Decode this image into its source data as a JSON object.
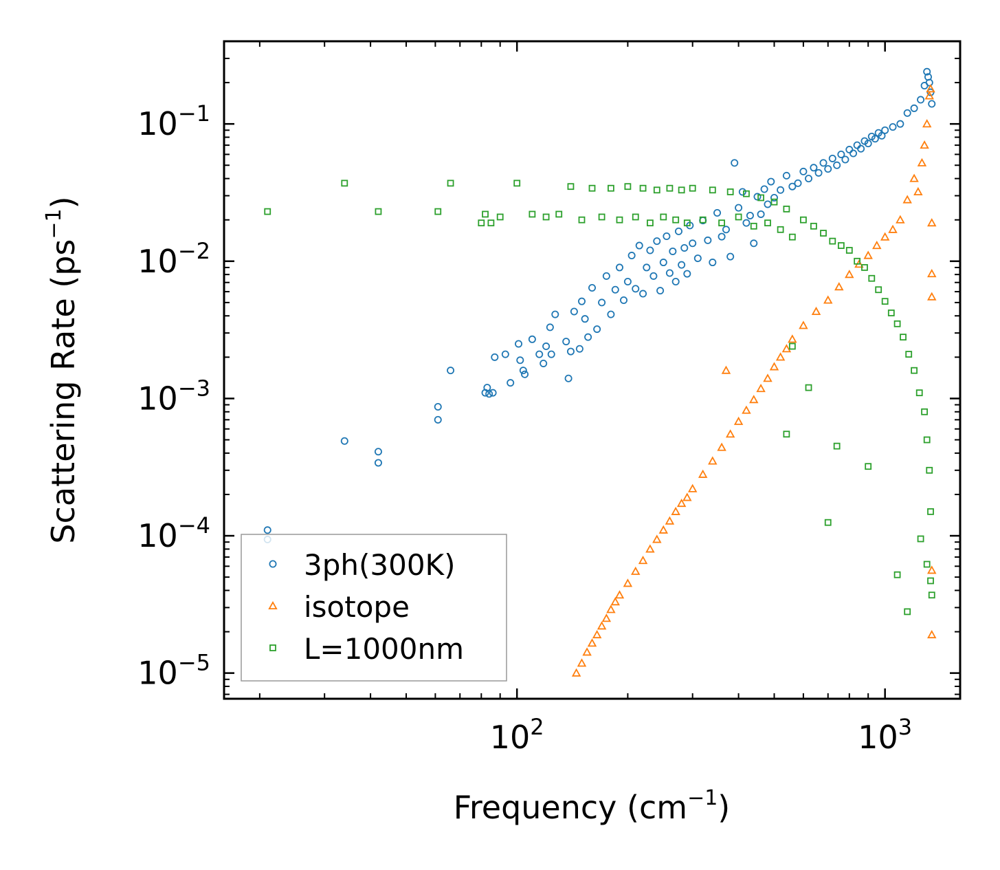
{
  "chart_data": {
    "type": "scatter",
    "xscale": "log",
    "yscale": "log",
    "xlim": [
      16,
      1600
    ],
    "ylim": [
      6.5e-06,
      0.4
    ],
    "xlabel": {
      "base": "Frequency (cm",
      "sup": "−1",
      "end": ")"
    },
    "ylabel": {
      "base": "Scattering Rate (ps",
      "sup": "−1",
      "end": ")"
    },
    "x_ticks": [
      {
        "value": 100,
        "base": "10",
        "exp": "2"
      },
      {
        "value": 1000,
        "base": "10",
        "exp": "3"
      }
    ],
    "y_ticks": [
      {
        "value": 1e-05,
        "base": "10",
        "exp": "−5"
      },
      {
        "value": 0.0001,
        "base": "10",
        "exp": "−4"
      },
      {
        "value": 0.001,
        "base": "10",
        "exp": "−3"
      },
      {
        "value": 0.01,
        "base": "10",
        "exp": "−2"
      },
      {
        "value": 0.1,
        "base": "10",
        "exp": "−1"
      }
    ],
    "legend_position": "lower-left",
    "series": [
      {
        "name": "3ph(300K)",
        "marker": "circle",
        "color": "#1f77b4",
        "x": [
          21,
          21,
          34,
          42,
          42,
          61,
          61,
          66,
          82,
          83,
          84,
          86,
          87,
          93,
          96,
          101,
          102,
          104,
          105,
          110,
          115,
          118,
          120,
          123,
          124,
          127,
          136,
          138,
          140,
          143,
          148,
          150,
          153,
          156,
          160,
          165,
          170,
          175,
          180,
          185,
          190,
          195,
          200,
          205,
          210,
          215,
          220,
          225,
          230,
          235,
          240,
          245,
          250,
          255,
          260,
          265,
          270,
          275,
          280,
          285,
          290,
          295,
          300,
          310,
          320,
          330,
          340,
          350,
          360,
          370,
          380,
          390,
          400,
          410,
          420,
          430,
          440,
          450,
          460,
          470,
          480,
          490,
          500,
          520,
          540,
          560,
          580,
          600,
          620,
          640,
          660,
          680,
          700,
          720,
          740,
          760,
          780,
          800,
          820,
          840,
          860,
          880,
          900,
          920,
          940,
          960,
          980,
          1000,
          1050,
          1100,
          1150,
          1200,
          1250,
          1280,
          1300,
          1310,
          1320,
          1330,
          1340
        ],
        "y": [
          0.00011,
          9.4e-05,
          0.00049,
          0.00041,
          0.00034,
          0.00087,
          0.0007,
          0.0016,
          0.0011,
          0.0012,
          0.00108,
          0.0011,
          0.002,
          0.0021,
          0.0013,
          0.0025,
          0.0019,
          0.0016,
          0.0015,
          0.0027,
          0.0021,
          0.0018,
          0.0024,
          0.0033,
          0.0021,
          0.0041,
          0.0026,
          0.0014,
          0.0022,
          0.0043,
          0.0023,
          0.0051,
          0.0038,
          0.0028,
          0.0064,
          0.0032,
          0.005,
          0.0078,
          0.0041,
          0.0062,
          0.009,
          0.0052,
          0.0071,
          0.011,
          0.0063,
          0.013,
          0.0058,
          0.009,
          0.012,
          0.0078,
          0.014,
          0.0061,
          0.0098,
          0.0152,
          0.0082,
          0.0118,
          0.0071,
          0.0165,
          0.0094,
          0.0125,
          0.0081,
          0.0182,
          0.0135,
          0.0105,
          0.0198,
          0.0142,
          0.0098,
          0.0225,
          0.0151,
          0.017,
          0.0108,
          0.052,
          0.0245,
          0.032,
          0.019,
          0.0215,
          0.0135,
          0.0295,
          0.022,
          0.0335,
          0.026,
          0.038,
          0.029,
          0.033,
          0.042,
          0.035,
          0.037,
          0.045,
          0.04,
          0.048,
          0.044,
          0.052,
          0.047,
          0.056,
          0.05,
          0.06,
          0.055,
          0.065,
          0.061,
          0.07,
          0.066,
          0.075,
          0.072,
          0.081,
          0.078,
          0.086,
          0.082,
          0.09,
          0.095,
          0.1,
          0.12,
          0.13,
          0.15,
          0.19,
          0.24,
          0.22,
          0.2,
          0.17,
          0.14
        ]
      },
      {
        "name": "isotope",
        "marker": "triangle",
        "color": "#ff7f0e",
        "x": [
          145,
          150,
          155,
          160,
          165,
          170,
          175,
          180,
          185,
          190,
          200,
          210,
          220,
          230,
          240,
          250,
          260,
          270,
          280,
          290,
          300,
          320,
          340,
          360,
          370,
          380,
          400,
          420,
          440,
          460,
          480,
          500,
          520,
          540,
          560,
          600,
          650,
          700,
          750,
          800,
          850,
          900,
          950,
          1000,
          1050,
          1100,
          1150,
          1200,
          1230,
          1260,
          1280,
          1300,
          1320,
          1330,
          1340,
          1340,
          1340,
          1340,
          1340
        ],
        "y": [
          1e-05,
          1.18e-05,
          1.42e-05,
          1.65e-05,
          1.9e-05,
          2.2e-05,
          2.5e-05,
          2.9e-05,
          3.3e-05,
          3.7e-05,
          4.5e-05,
          5.5e-05,
          6.6e-05,
          8e-05,
          9.4e-05,
          0.00011,
          0.000128,
          0.00015,
          0.000172,
          0.00019,
          0.00022,
          0.00028,
          0.00035,
          0.00044,
          0.0016,
          0.00055,
          0.00068,
          0.00082,
          0.00098,
          0.00118,
          0.0014,
          0.0017,
          0.002,
          0.0023,
          0.0027,
          0.0034,
          0.0043,
          0.0052,
          0.0065,
          0.008,
          0.0095,
          0.011,
          0.013,
          0.015,
          0.017,
          0.02,
          0.028,
          0.04,
          0.032,
          0.052,
          0.07,
          0.1,
          0.16,
          0.18,
          0.019,
          0.0081,
          0.0055,
          5.6e-05,
          1.9e-05
        ]
      },
      {
        "name": "L=1000nm",
        "marker": "square",
        "color": "#2ca02c",
        "x": [
          21,
          34,
          42,
          61,
          66,
          80,
          82,
          85,
          90,
          100,
          110,
          120,
          130,
          140,
          150,
          160,
          170,
          180,
          190,
          200,
          210,
          220,
          230,
          240,
          250,
          260,
          270,
          280,
          290,
          300,
          320,
          340,
          360,
          380,
          400,
          420,
          440,
          460,
          480,
          500,
          520,
          540,
          560,
          600,
          640,
          680,
          720,
          760,
          800,
          840,
          880,
          920,
          960,
          1000,
          1040,
          1080,
          1120,
          1160,
          1200,
          1240,
          1280,
          1300,
          1320,
          1330,
          1340,
          540,
          560,
          620,
          700,
          740,
          900,
          1080,
          1150,
          1250,
          1300,
          1330
        ],
        "y": [
          0.023,
          0.037,
          0.023,
          0.023,
          0.037,
          0.019,
          0.022,
          0.019,
          0.021,
          0.037,
          0.022,
          0.021,
          0.022,
          0.035,
          0.02,
          0.034,
          0.021,
          0.034,
          0.02,
          0.035,
          0.021,
          0.034,
          0.019,
          0.033,
          0.021,
          0.034,
          0.02,
          0.033,
          0.019,
          0.034,
          0.02,
          0.033,
          0.019,
          0.032,
          0.021,
          0.031,
          0.018,
          0.029,
          0.019,
          0.027,
          0.017,
          0.024,
          0.015,
          0.02,
          0.018,
          0.016,
          0.014,
          0.013,
          0.012,
          0.01,
          0.009,
          0.0075,
          0.0062,
          0.0051,
          0.0042,
          0.0035,
          0.0028,
          0.0021,
          0.0016,
          0.0011,
          0.0008,
          0.0005,
          0.0003,
          0.00015,
          3.7e-05,
          0.00055,
          0.0024,
          0.0012,
          0.000125,
          0.00045,
          0.00032,
          5.2e-05,
          2.8e-05,
          9.5e-05,
          6.2e-05,
          4.7e-05
        ]
      }
    ]
  }
}
